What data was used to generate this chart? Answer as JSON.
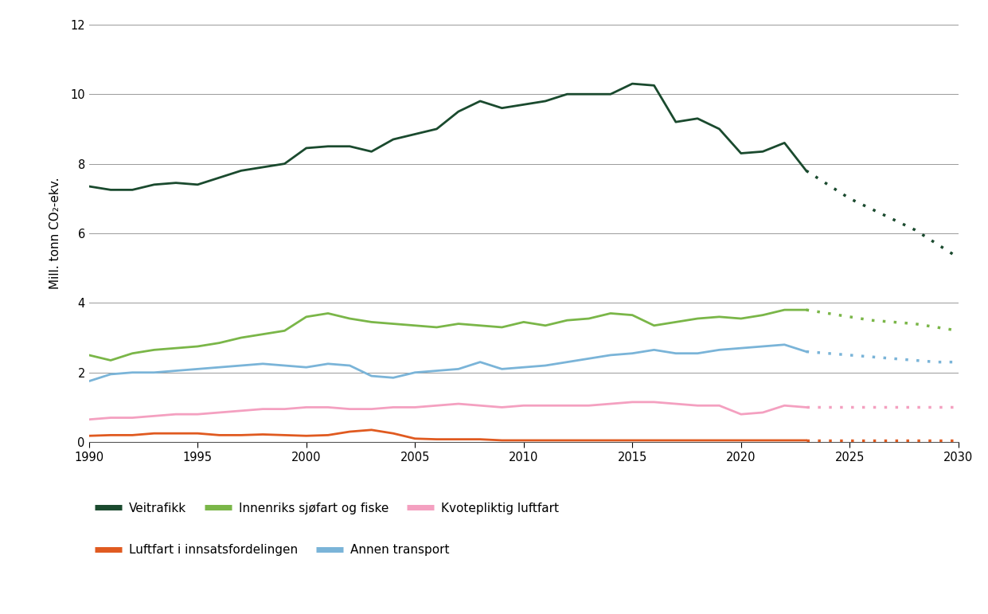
{
  "veitrafikk_hist_x": [
    1990,
    1991,
    1992,
    1993,
    1994,
    1995,
    1996,
    1997,
    1998,
    1999,
    2000,
    2001,
    2002,
    2003,
    2004,
    2005,
    2006,
    2007,
    2008,
    2009,
    2010,
    2011,
    2012,
    2013,
    2014,
    2015,
    2016,
    2017,
    2018,
    2019,
    2020,
    2021,
    2022,
    2023
  ],
  "veitrafikk_hist_y": [
    7.35,
    7.25,
    7.25,
    7.4,
    7.45,
    7.4,
    7.6,
    7.8,
    7.9,
    8.0,
    8.45,
    8.5,
    8.5,
    8.35,
    8.7,
    8.85,
    9.0,
    9.5,
    9.8,
    9.6,
    9.7,
    9.8,
    10.0,
    10.0,
    10.0,
    10.3,
    10.25,
    9.2,
    9.3,
    9.0,
    8.3,
    8.35,
    8.6,
    7.8
  ],
  "veitrafikk_proj_x": [
    2023,
    2024,
    2025,
    2026,
    2027,
    2028,
    2029,
    2030
  ],
  "veitrafikk_proj_y": [
    7.8,
    7.4,
    7.0,
    6.7,
    6.4,
    6.1,
    5.7,
    5.3
  ],
  "sjoefart_hist_x": [
    1990,
    1991,
    1992,
    1993,
    1994,
    1995,
    1996,
    1997,
    1998,
    1999,
    2000,
    2001,
    2002,
    2003,
    2004,
    2005,
    2006,
    2007,
    2008,
    2009,
    2010,
    2011,
    2012,
    2013,
    2014,
    2015,
    2016,
    2017,
    2018,
    2019,
    2020,
    2021,
    2022,
    2023
  ],
  "sjoefart_hist_y": [
    2.5,
    2.35,
    2.55,
    2.65,
    2.7,
    2.75,
    2.85,
    3.0,
    3.1,
    3.2,
    3.6,
    3.7,
    3.55,
    3.45,
    3.4,
    3.35,
    3.3,
    3.4,
    3.35,
    3.3,
    3.45,
    3.35,
    3.5,
    3.55,
    3.7,
    3.65,
    3.35,
    3.45,
    3.55,
    3.6,
    3.55,
    3.65,
    3.8,
    3.8
  ],
  "sjoefart_proj_x": [
    2023,
    2024,
    2025,
    2026,
    2027,
    2028,
    2029,
    2030
  ],
  "sjoefart_proj_y": [
    3.8,
    3.7,
    3.6,
    3.5,
    3.45,
    3.4,
    3.3,
    3.2
  ],
  "kvote_hist_x": [
    1990,
    1991,
    1992,
    1993,
    1994,
    1995,
    1996,
    1997,
    1998,
    1999,
    2000,
    2001,
    2002,
    2003,
    2004,
    2005,
    2006,
    2007,
    2008,
    2009,
    2010,
    2011,
    2012,
    2013,
    2014,
    2015,
    2016,
    2017,
    2018,
    2019,
    2020,
    2021,
    2022,
    2023
  ],
  "kvote_hist_y": [
    0.65,
    0.7,
    0.7,
    0.75,
    0.8,
    0.8,
    0.85,
    0.9,
    0.95,
    0.95,
    1.0,
    1.0,
    0.95,
    0.95,
    1.0,
    1.0,
    1.05,
    1.1,
    1.05,
    1.0,
    1.05,
    1.05,
    1.05,
    1.05,
    1.1,
    1.15,
    1.15,
    1.1,
    1.05,
    1.05,
    0.8,
    0.85,
    1.05,
    1.0
  ],
  "kvote_proj_x": [
    2023,
    2024,
    2025,
    2026,
    2027,
    2028,
    2029,
    2030
  ],
  "kvote_proj_y": [
    1.0,
    1.0,
    1.0,
    1.0,
    1.0,
    1.0,
    1.0,
    1.0
  ],
  "luftfart_hist_x": [
    1990,
    1991,
    1992,
    1993,
    1994,
    1995,
    1996,
    1997,
    1998,
    1999,
    2000,
    2001,
    2002,
    2003,
    2004,
    2005,
    2006,
    2007,
    2008,
    2009,
    2010,
    2011,
    2012,
    2013,
    2014,
    2015,
    2016,
    2017,
    2018,
    2019,
    2020,
    2021,
    2022,
    2023
  ],
  "luftfart_hist_y": [
    0.18,
    0.2,
    0.2,
    0.25,
    0.25,
    0.25,
    0.2,
    0.2,
    0.22,
    0.2,
    0.18,
    0.2,
    0.3,
    0.35,
    0.25,
    0.1,
    0.08,
    0.08,
    0.08,
    0.05,
    0.05,
    0.05,
    0.05,
    0.05,
    0.05,
    0.05,
    0.05,
    0.05,
    0.05,
    0.05,
    0.05,
    0.05,
    0.05,
    0.05
  ],
  "luftfart_proj_x": [
    2023,
    2024,
    2025,
    2026,
    2027,
    2028,
    2029,
    2030
  ],
  "luftfart_proj_y": [
    0.05,
    0.05,
    0.05,
    0.05,
    0.05,
    0.05,
    0.05,
    0.05
  ],
  "annen_hist_x": [
    1990,
    1991,
    1992,
    1993,
    1994,
    1995,
    1996,
    1997,
    1998,
    1999,
    2000,
    2001,
    2002,
    2003,
    2004,
    2005,
    2006,
    2007,
    2008,
    2009,
    2010,
    2011,
    2012,
    2013,
    2014,
    2015,
    2016,
    2017,
    2018,
    2019,
    2020,
    2021,
    2022,
    2023
  ],
  "annen_hist_y": [
    1.75,
    1.95,
    2.0,
    2.0,
    2.05,
    2.1,
    2.15,
    2.2,
    2.25,
    2.2,
    2.15,
    2.25,
    2.2,
    1.9,
    1.85,
    2.0,
    2.05,
    2.1,
    2.3,
    2.1,
    2.15,
    2.2,
    2.3,
    2.4,
    2.5,
    2.55,
    2.65,
    2.55,
    2.55,
    2.65,
    2.7,
    2.75,
    2.8,
    2.6
  ],
  "annen_proj_x": [
    2023,
    2024,
    2025,
    2026,
    2027,
    2028,
    2029,
    2030
  ],
  "annen_proj_y": [
    2.6,
    2.55,
    2.5,
    2.45,
    2.4,
    2.35,
    2.3,
    2.3
  ],
  "colors": {
    "veitrafikk": "#1a4a2e",
    "sjoefart": "#7ab648",
    "kvote": "#f4a0c0",
    "luftfart": "#e05a20",
    "annen": "#7ab4d8"
  },
  "ylabel": "Mill. tonn CO₂-ekv.",
  "xlim": [
    1990,
    2030
  ],
  "ylim": [
    0,
    12
  ],
  "yticks": [
    0,
    2,
    4,
    6,
    8,
    10,
    12
  ],
  "xticks": [
    1990,
    1995,
    2000,
    2005,
    2010,
    2015,
    2020,
    2025,
    2030
  ],
  "legend_row1": [
    {
      "label": "Veitrafikk",
      "color": "#1a4a2e"
    },
    {
      "label": "Innenriks sjøfart og fiske",
      "color": "#7ab648"
    },
    {
      "label": "Kvotepliktig luftfart",
      "color": "#f4a0c0"
    }
  ],
  "legend_row2": [
    {
      "label": "Luftfart i innsatsfordelingen",
      "color": "#e05a20"
    },
    {
      "label": "Annen transport",
      "color": "#7ab4d8"
    }
  ]
}
